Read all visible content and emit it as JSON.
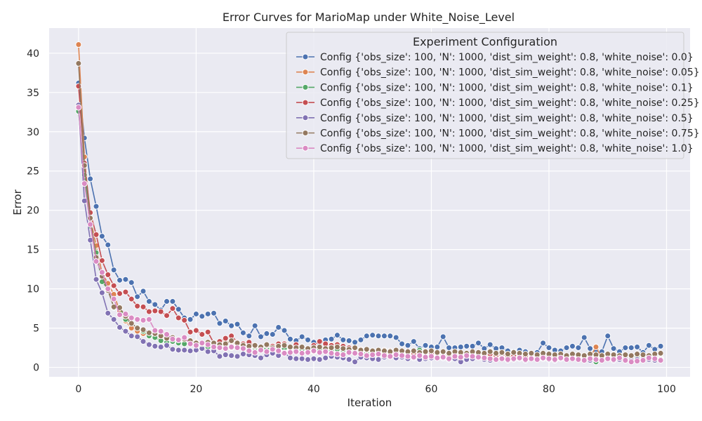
{
  "chart_data": {
    "type": "line",
    "title": "Error Curves for MarioMap under White_Noise_Level",
    "xlabel": "Iteration",
    "ylabel": "Error",
    "xlim": [
      -5,
      104
    ],
    "ylim": [
      -1.2,
      43.2
    ],
    "xticks": [
      0,
      20,
      40,
      60,
      80,
      100
    ],
    "yticks": [
      0,
      5,
      10,
      15,
      20,
      25,
      30,
      35,
      40
    ],
    "grid": true,
    "legend": {
      "title": "Experiment Configuration",
      "placement": "upper-right"
    },
    "x": [
      0,
      1,
      2,
      3,
      4,
      5,
      6,
      7,
      8,
      9,
      10,
      11,
      12,
      13,
      14,
      15,
      16,
      17,
      18,
      19,
      20,
      21,
      22,
      23,
      24,
      25,
      26,
      27,
      28,
      29,
      30,
      31,
      32,
      33,
      34,
      35,
      36,
      37,
      38,
      39,
      40,
      41,
      42,
      43,
      44,
      45,
      46,
      47,
      48,
      49,
      50,
      51,
      52,
      53,
      54,
      55,
      56,
      57,
      58,
      59,
      60,
      61,
      62,
      63,
      64,
      65,
      66,
      67,
      68,
      69,
      70,
      71,
      72,
      73,
      74,
      75,
      76,
      77,
      78,
      79,
      80,
      81,
      82,
      83,
      84,
      85,
      86,
      87,
      88,
      89,
      90,
      91,
      92,
      93,
      94,
      95,
      96,
      97,
      98,
      99
    ],
    "series": [
      {
        "name": "Config {'obs_size': 100, 'N': 1000, 'dist_sim_weight': 0.8, 'white_noise': 0.0}",
        "color": "#4c72b0",
        "values": [
          36.2,
          29.2,
          24.0,
          20.5,
          16.7,
          15.6,
          12.4,
          11.1,
          11.2,
          10.8,
          9.0,
          9.7,
          8.4,
          8.0,
          7.3,
          8.4,
          8.4,
          7.4,
          6.3,
          6.1,
          6.8,
          6.5,
          6.8,
          6.9,
          5.6,
          5.9,
          5.3,
          5.5,
          4.4,
          4.0,
          5.3,
          3.9,
          4.3,
          4.2,
          5.1,
          4.7,
          3.6,
          3.4,
          3.9,
          3.5,
          3.2,
          3.1,
          3.5,
          3.6,
          4.1,
          3.5,
          3.4,
          3.2,
          3.5,
          4.0,
          4.1,
          4.0,
          4.0,
          4.0,
          3.8,
          3.0,
          2.8,
          3.3,
          2.4,
          2.8,
          2.6,
          2.6,
          3.9,
          2.5,
          2.5,
          2.6,
          2.7,
          2.7,
          3.1,
          2.4,
          2.9,
          2.4,
          2.5,
          2.1,
          2.0,
          2.2,
          2.0,
          1.8,
          1.9,
          3.1,
          2.5,
          2.2,
          2.1,
          2.5,
          2.7,
          2.5,
          3.8,
          2.4,
          2.2,
          2.0,
          4.0,
          2.4,
          2.0,
          2.5,
          2.5,
          2.6,
          1.9,
          2.8,
          2.3,
          2.7
        ]
      },
      {
        "name": "Config {'obs_size': 100, 'N': 1000, 'dist_sim_weight': 0.8, 'white_noise': 0.05}",
        "color": "#dd8452",
        "values": [
          41.1,
          26.8,
          19.0,
          15.5,
          12.0,
          10.7,
          9.3,
          7.2,
          5.9,
          5.0,
          4.6,
          4.3,
          4.0,
          3.8,
          3.7,
          3.6,
          3.7,
          3.5,
          3.4,
          3.3,
          3.2,
          3.0,
          3.1,
          2.9,
          3.0,
          3.2,
          3.3,
          2.8,
          2.6,
          2.5,
          2.7,
          2.4,
          2.5,
          2.3,
          2.6,
          2.2,
          2.4,
          2.1,
          2.3,
          2.2,
          2.0,
          2.1,
          2.3,
          2.0,
          2.2,
          2.1,
          1.9,
          2.2,
          1.8,
          2.0,
          1.9,
          1.7,
          1.8,
          1.9,
          1.8,
          1.7,
          1.8,
          1.6,
          1.7,
          1.8,
          1.7,
          1.5,
          1.6,
          1.5,
          1.7,
          1.5,
          1.4,
          1.6,
          1.5,
          1.3,
          1.4,
          1.4,
          1.5,
          1.3,
          1.4,
          1.5,
          1.3,
          1.4,
          1.4,
          1.5,
          1.3,
          1.2,
          1.4,
          1.3,
          1.4,
          1.2,
          1.5,
          1.3,
          2.6,
          1.2,
          1.3,
          1.2,
          1.1,
          1.4,
          1.2,
          1.3,
          1.1,
          1.2,
          1.0,
          1.0
        ]
      },
      {
        "name": "Config {'obs_size': 100, 'N': 1000, 'dist_sim_weight': 0.8, 'white_noise': 0.1}",
        "color": "#55a868",
        "values": [
          32.6,
          24.5,
          18.0,
          14.6,
          10.9,
          10.0,
          7.6,
          7.6,
          6.1,
          5.6,
          5.1,
          4.6,
          4.0,
          3.8,
          3.4,
          3.2,
          3.3,
          3.1,
          3.0,
          3.1,
          2.8,
          2.7,
          2.6,
          2.7,
          2.5,
          2.6,
          2.5,
          2.6,
          2.4,
          2.3,
          2.5,
          2.3,
          2.4,
          2.2,
          2.6,
          2.4,
          2.5,
          2.2,
          2.3,
          2.1,
          2.2,
          2.3,
          2.2,
          2.1,
          2.3,
          2.2,
          2.0,
          2.1,
          2.0,
          1.9,
          1.8,
          2.0,
          2.1,
          1.9,
          1.8,
          2.0,
          1.9,
          1.8,
          2.2,
          1.9,
          2.0,
          1.8,
          1.9,
          1.7,
          1.9,
          1.8,
          1.7,
          1.6,
          1.8,
          1.7,
          1.8,
          1.6,
          1.9,
          1.7,
          1.6,
          1.8,
          1.6,
          1.7,
          1.5,
          1.7,
          1.5,
          0.9,
          1.6,
          1.4,
          1.5,
          1.5,
          1.3,
          1.4,
          0.7,
          1.4,
          1.5,
          1.3,
          1.2,
          1.3,
          1.2,
          1.3,
          1.1,
          1.2,
          1.1,
          1.2
        ]
      },
      {
        "name": "Config {'obs_size': 100, 'N': 1000, 'dist_sim_weight': 0.8, 'white_noise': 0.25}",
        "color": "#c44e52",
        "values": [
          35.8,
          26.0,
          19.7,
          16.9,
          13.6,
          11.8,
          10.4,
          9.4,
          9.6,
          8.7,
          7.8,
          7.7,
          7.1,
          7.2,
          7.1,
          6.6,
          7.5,
          6.3,
          6.0,
          4.5,
          4.7,
          4.2,
          4.5,
          3.1,
          3.3,
          3.7,
          4.0,
          3.2,
          3.0,
          3.2,
          2.7,
          2.5,
          2.8,
          2.7,
          3.0,
          3.0,
          2.6,
          2.9,
          2.6,
          2.4,
          2.8,
          3.3,
          3.0,
          2.8,
          2.9,
          2.7,
          2.5,
          2.4,
          2.3,
          2.2,
          2.1,
          2.0,
          2.2,
          2.1,
          1.9,
          2.0,
          2.1,
          1.8,
          1.9,
          2.0,
          1.8,
          1.7,
          1.9,
          1.6,
          1.8,
          1.7,
          1.6,
          1.5,
          1.7,
          1.6,
          1.7,
          1.5,
          1.6,
          1.4,
          1.5,
          1.6,
          1.4,
          1.5,
          1.3,
          1.5,
          1.4,
          1.3,
          1.5,
          1.4,
          1.3,
          1.2,
          1.4,
          1.3,
          1.2,
          1.3,
          1.1,
          1.2,
          1.3,
          1.1,
          1.2,
          1.0,
          1.1,
          1.2,
          1.0,
          1.1
        ]
      },
      {
        "name": "Config {'obs_size': 100, 'N': 1000, 'dist_sim_weight': 0.8, 'white_noise': 0.5}",
        "color": "#8172b3",
        "values": [
          33.4,
          21.2,
          16.2,
          11.2,
          9.5,
          6.9,
          6.1,
          5.1,
          4.6,
          4.0,
          3.9,
          3.3,
          2.9,
          2.7,
          2.6,
          2.8,
          2.3,
          2.2,
          2.2,
          2.1,
          2.2,
          2.4,
          2.0,
          2.1,
          1.4,
          1.6,
          1.5,
          1.4,
          1.7,
          1.6,
          1.5,
          1.2,
          1.6,
          1.8,
          1.5,
          1.9,
          1.2,
          1.1,
          1.1,
          1.0,
          1.1,
          1.0,
          1.2,
          1.4,
          1.3,
          1.2,
          1.0,
          0.7,
          1.3,
          1.2,
          1.1,
          1.0,
          1.3,
          1.4,
          1.2,
          1.3,
          1.1,
          1.2,
          1.0,
          1.1,
          1.2,
          1.3,
          1.2,
          1.0,
          1.1,
          0.7,
          1.0,
          1.1,
          1.3,
          1.0,
          0.9,
          1.0,
          1.2,
          0.9,
          1.0,
          1.1,
          0.9,
          1.2,
          1.0,
          1.1,
          1.0,
          0.9,
          1.1,
          1.0,
          1.2,
          1.0,
          1.1,
          0.9,
          1.0,
          1.1,
          1.2,
          0.9,
          1.0,
          1.1,
          0.9,
          1.0,
          1.1,
          1.0,
          0.9,
          1.0
        ]
      },
      {
        "name": "Config {'obs_size': 100, 'N': 1000, 'dist_sim_weight': 0.8, 'white_noise': 0.75}",
        "color": "#937860",
        "values": [
          38.7,
          25.7,
          19.0,
          14.0,
          11.6,
          9.8,
          7.7,
          7.6,
          6.5,
          5.6,
          5.0,
          4.8,
          4.4,
          4.3,
          4.0,
          3.7,
          3.8,
          3.5,
          3.6,
          3.4,
          3.1,
          3.0,
          3.2,
          3.1,
          2.9,
          3.0,
          3.4,
          3.1,
          2.8,
          2.7,
          2.8,
          2.6,
          2.9,
          2.5,
          2.7,
          2.8,
          2.6,
          2.5,
          2.6,
          2.4,
          2.5,
          2.6,
          2.4,
          2.5,
          2.6,
          2.4,
          2.3,
          2.5,
          2.2,
          2.3,
          2.1,
          2.2,
          2.1,
          2.0,
          2.2,
          2.1,
          2.0,
          2.1,
          1.9,
          2.0,
          2.1,
          1.9,
          2.0,
          1.8,
          2.0,
          1.9,
          1.8,
          2.0,
          1.9,
          1.8,
          2.0,
          1.8,
          1.9,
          1.7,
          1.9,
          1.8,
          1.7,
          1.8,
          1.6,
          1.8,
          1.7,
          1.6,
          1.7,
          1.5,
          1.7,
          1.6,
          1.5,
          1.7,
          1.6,
          1.5,
          1.7,
          1.6,
          1.5,
          1.6,
          1.5,
          1.7,
          1.6,
          1.5,
          1.7,
          1.8
        ]
      },
      {
        "name": "Config {'obs_size': 100, 'N': 1000, 'dist_sim_weight': 0.8, 'white_noise': 1.0}",
        "color": "#da8bc3",
        "values": [
          33.1,
          23.4,
          18.2,
          13.5,
          12.1,
          10.0,
          8.7,
          6.7,
          6.8,
          6.3,
          6.1,
          6.0,
          6.1,
          4.7,
          4.6,
          4.2,
          3.6,
          3.5,
          3.8,
          3.0,
          2.8,
          3.1,
          2.9,
          2.6,
          2.5,
          2.4,
          2.6,
          2.5,
          2.4,
          2.1,
          1.9,
          2.2,
          2.0,
          2.3,
          2.1,
          1.8,
          1.9,
          2.0,
          1.8,
          1.9,
          2.1,
          1.9,
          2.0,
          1.8,
          1.7,
          1.6,
          1.9,
          1.8,
          1.7,
          1.5,
          1.6,
          1.7,
          1.5,
          1.4,
          1.6,
          1.5,
          1.4,
          1.3,
          1.5,
          1.3,
          1.4,
          1.2,
          1.3,
          1.1,
          1.4,
          1.3,
          1.5,
          1.4,
          1.3,
          1.2,
          1.1,
          1.0,
          1.1,
          1.0,
          1.1,
          1.2,
          1.0,
          1.1,
          1.0,
          1.2,
          1.1,
          1.0,
          1.2,
          1.0,
          1.1,
          1.0,
          0.9,
          1.1,
          1.0,
          0.9,
          1.1,
          1.0,
          1.2,
          0.9,
          0.7,
          0.8,
          0.9,
          1.2,
          1.1,
          0.9
        ]
      }
    ]
  }
}
